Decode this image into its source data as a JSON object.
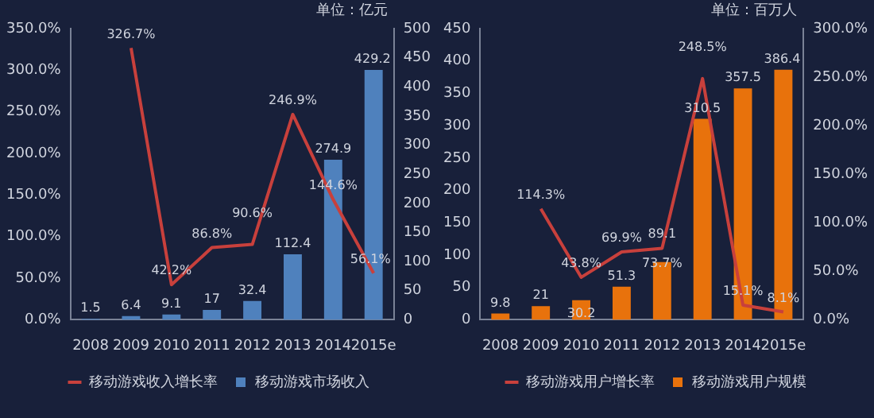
{
  "chart_data": [
    {
      "type": "bar",
      "categories": [
        "2008",
        "2009",
        "2010",
        "2011",
        "2012",
        "2013",
        "2014",
        "2015e"
      ],
      "annotations": [
        "单位：亿元"
      ],
      "legend": "bottom",
      "ylim": [
        0,
        350
      ],
      "yticks": [
        {
          "value": 0,
          "label": "0.0%"
        },
        {
          "value": 50,
          "label": "50.0%"
        },
        {
          "value": 100,
          "label": "100.0%"
        },
        {
          "value": 150,
          "label": "150.0%"
        },
        {
          "value": 200,
          "label": "200.0%"
        },
        {
          "value": 250,
          "label": "250.0%"
        },
        {
          "value": 300,
          "label": "300.0%"
        },
        {
          "value": 350,
          "label": "350.0%"
        }
      ],
      "y2lim": [
        0,
        500
      ],
      "y2ticks": [
        0,
        50,
        100,
        150,
        200,
        250,
        300,
        350,
        400,
        450,
        500
      ],
      "series": [
        {
          "name": "移动游戏市场收入",
          "axis": "y2",
          "color": "#4f81bd",
          "values": [
            1.5,
            6.4,
            9.1,
            17,
            32.4,
            112.4,
            274.9,
            429.2
          ],
          "value_labels": [
            "1.5",
            "6.4",
            "9.1",
            "17",
            "32.4",
            "112.4",
            "274.9",
            "429.2"
          ]
        },
        {
          "name": "移动游戏收入增长率",
          "type": "line",
          "axis": "y",
          "color": "#c8403c",
          "values": [
            null,
            326.7,
            42.2,
            86.8,
            90.6,
            246.9,
            144.6,
            56.1
          ],
          "value_labels": [
            null,
            "326.7%",
            "42.2%",
            "86.8%",
            "90.6%",
            "246.9%",
            "144.6%",
            "56.1%"
          ]
        }
      ]
    },
    {
      "type": "bar",
      "categories": [
        "2008",
        "2009",
        "2010",
        "2011",
        "2012",
        "2013",
        "2014",
        "2015e"
      ],
      "annotations": [
        "单位：百万人"
      ],
      "legend": "bottom",
      "ylim": [
        0,
        450
      ],
      "yticks": [
        0,
        50,
        100,
        150,
        200,
        250,
        300,
        350,
        400,
        450
      ],
      "y2lim": [
        0,
        300
      ],
      "y2ticks": [
        {
          "value": 0,
          "label": "0.0%"
        },
        {
          "value": 50,
          "label": "50.0%"
        },
        {
          "value": 100,
          "label": "100.0%"
        },
        {
          "value": 150,
          "label": "150.0%"
        },
        {
          "value": 200,
          "label": "200.0%"
        },
        {
          "value": 250,
          "label": "250.0%"
        },
        {
          "value": 300,
          "label": "300.0%"
        }
      ],
      "series": [
        {
          "name": "移动游戏用户规模",
          "axis": "y",
          "color": "#e8720c",
          "values": [
            9.8,
            21,
            30.2,
            51.3,
            89.1,
            310.5,
            357.5,
            386.4
          ],
          "value_labels": [
            "9.8",
            "21",
            "30.2",
            "51.3",
            "89.1",
            "310.5",
            "357.5",
            "386.4"
          ]
        },
        {
          "name": "移动游戏用户增长率",
          "type": "line",
          "axis": "y2",
          "color": "#c8403c",
          "values": [
            null,
            114.3,
            43.8,
            69.9,
            73.7,
            248.5,
            15.1,
            8.1
          ],
          "value_labels": [
            null,
            "114.3%",
            "43.8%",
            "69.9%",
            "73.7%",
            "248.5%",
            "15.1%",
            "8.1%"
          ]
        }
      ]
    }
  ]
}
